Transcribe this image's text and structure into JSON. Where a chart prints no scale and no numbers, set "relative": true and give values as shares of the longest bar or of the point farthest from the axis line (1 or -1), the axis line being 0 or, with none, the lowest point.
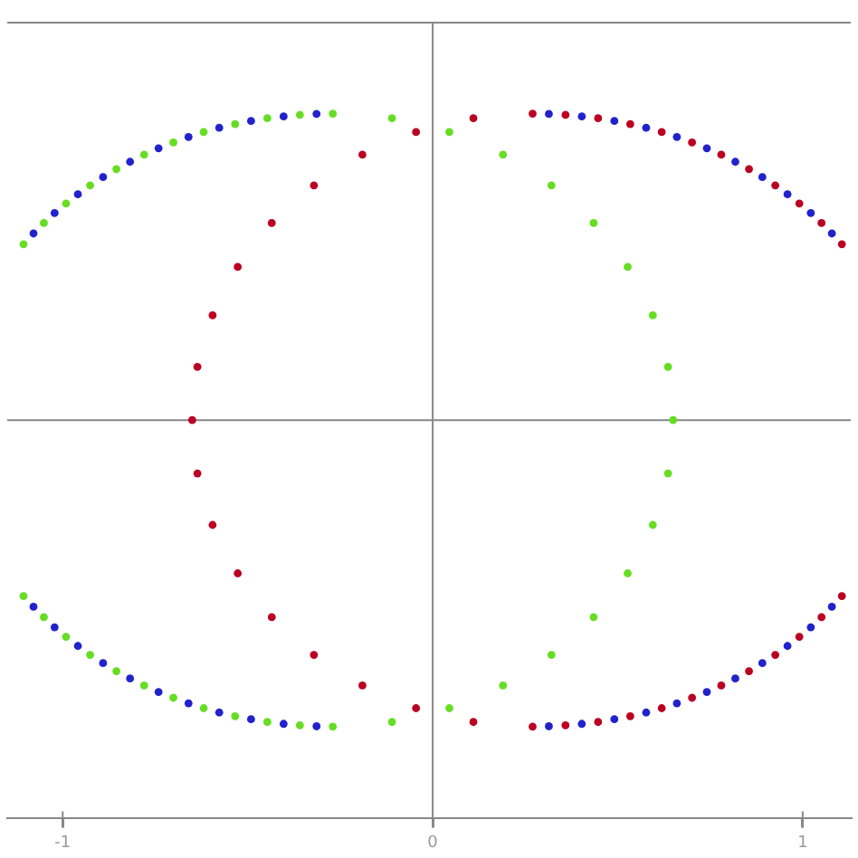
{
  "chart_data": {
    "type": "scatter",
    "relative": true,
    "marker": "circle",
    "legend": false,
    "tick_labels": "x",
    "xlim": [
      -1.15,
      1.13
    ],
    "xticks": [
      -1,
      0,
      1
    ],
    "series": [
      {
        "color": "#66dd22",
        "x": [
          -1.106,
          -1.051,
          -0.991,
          -0.926,
          -0.855,
          -0.78,
          -0.701,
          -0.619,
          -0.534,
          -0.447,
          -0.359,
          -0.27,
          -0.11,
          0.045,
          0.19,
          0.321,
          0.435,
          0.527,
          0.595,
          0.636,
          0.65,
          0.636,
          0.595,
          0.527,
          0.435,
          0.321,
          0.19,
          0.045,
          -0.11,
          -0.27,
          -0.359,
          -0.447,
          -0.534,
          -0.619,
          -0.701,
          -0.78,
          -0.855,
          -0.926,
          -0.991,
          -1.051,
          -1.106
        ],
        "values": [
          0.574,
          0.643,
          0.707,
          0.766,
          0.819,
          0.866,
          0.906,
          0.94,
          0.966,
          0.985,
          0.996,
          1,
          0.985,
          0.94,
          0.866,
          0.766,
          0.643,
          0.5,
          0.342,
          0.174,
          0,
          -0.174,
          -0.342,
          -0.5,
          -0.643,
          -0.766,
          -0.866,
          -0.94,
          -0.985,
          -1,
          -0.996,
          -0.985,
          -0.966,
          -0.94,
          -0.906,
          -0.866,
          -0.819,
          -0.766,
          -0.707,
          -0.643,
          -0.574
        ]
      },
      {
        "color": "#bb0022",
        "x": [
          1.106,
          1.051,
          0.991,
          0.926,
          0.855,
          0.78,
          0.701,
          0.619,
          0.534,
          0.447,
          0.359,
          0.27,
          0.11,
          -0.045,
          -0.19,
          -0.321,
          -0.435,
          -0.527,
          -0.595,
          -0.636,
          -0.65,
          -0.636,
          -0.595,
          -0.527,
          -0.435,
          -0.321,
          -0.19,
          -0.045,
          0.11,
          0.27,
          0.359,
          0.447,
          0.534,
          0.619,
          0.701,
          0.78,
          0.855,
          0.926,
          0.991,
          1.051,
          1.106
        ],
        "values": [
          0.574,
          0.643,
          0.707,
          0.766,
          0.819,
          0.866,
          0.906,
          0.94,
          0.966,
          0.985,
          0.996,
          1,
          0.985,
          0.94,
          0.866,
          0.766,
          0.643,
          0.5,
          0.342,
          0.174,
          0,
          -0.174,
          -0.342,
          -0.5,
          -0.643,
          -0.766,
          -0.866,
          -0.94,
          -0.985,
          -1,
          -0.996,
          -0.985,
          -0.966,
          -0.94,
          -0.906,
          -0.866,
          -0.819,
          -0.766,
          -0.707,
          -0.643,
          -0.574
        ]
      },
      {
        "color": "#2222cc",
        "x": [
          -1.079,
          -1.022,
          -0.959,
          -0.891,
          -0.818,
          -0.741,
          -0.66,
          -0.577,
          -0.491,
          -0.403,
          -0.314,
          -0.314,
          -0.403,
          -0.491,
          -0.577,
          -0.66,
          -0.741,
          -0.818,
          -0.891,
          -0.959,
          -1.022,
          -1.079,
          1.079,
          1.022,
          0.959,
          0.891,
          0.818,
          0.741,
          0.66,
          0.577,
          0.491,
          0.403,
          0.314,
          0.314,
          0.403,
          0.491,
          0.577,
          0.66,
          0.741,
          0.818,
          0.891,
          0.959,
          1.022,
          1.079
        ],
        "values": [
          0.609,
          0.676,
          0.737,
          0.793,
          0.843,
          0.887,
          0.924,
          0.954,
          0.976,
          0.991,
          0.999,
          -0.999,
          -0.991,
          -0.976,
          -0.954,
          -0.924,
          -0.887,
          -0.843,
          -0.793,
          -0.737,
          -0.676,
          -0.609,
          0.609,
          0.676,
          0.737,
          0.793,
          0.843,
          0.887,
          0.924,
          0.954,
          0.976,
          0.991,
          0.999,
          -0.999,
          -0.991,
          -0.976,
          -0.954,
          -0.924,
          -0.887,
          -0.843,
          -0.793,
          -0.737,
          -0.676,
          -0.609
        ]
      }
    ]
  }
}
